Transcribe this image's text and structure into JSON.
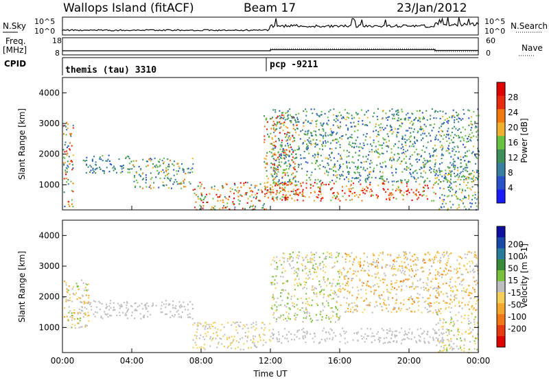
{
  "header": {
    "station": "Wallops Island (fitACF)",
    "beam": "Beam 17",
    "date": "23/Jan/2012"
  },
  "ops": {
    "nsky_label": "N.Sky",
    "nsearch_label": "N.Search",
    "nave_label": "Nave",
    "freq_label_1": "Freq.",
    "freq_label_2": "[MHz]",
    "cpid_label": "CPID",
    "exp_top": "10^5",
    "exp_bottom": "10^0",
    "freq_top": "18",
    "freq_bottom": "8",
    "nave_top": "60",
    "nave_bottom": "0",
    "cpid_1": "themis (tau) 3310",
    "cpid_2": "pcp -9211"
  },
  "colors": {
    "power": [
      "#1a1aff",
      "#2a52c8",
      "#3a7fa0",
      "#3f8f5a",
      "#6ac040",
      "#f0b030",
      "#f07a10",
      "#e82a10",
      "#e00000"
    ],
    "velocity": [
      "#e00000",
      "#e63a10",
      "#f07818",
      "#f4a830",
      "#f4d05a",
      "#bebebe",
      "#7cc040",
      "#3a8a3a",
      "#2a7a9a",
      "#1a4aa8",
      "#1010a0"
    ],
    "ground": "#bebebe"
  },
  "chart_data": [
    {
      "type": "heatmap",
      "title": "Power",
      "ylabel": "Slant Range [km]",
      "xlabel": "",
      "xlim": [
        "00:00",
        "24:00"
      ],
      "ylim": [
        180,
        4500
      ],
      "y_ticks": [
        "1000",
        "2000",
        "3000",
        "4000"
      ],
      "colorbar": {
        "label": "Power [dB]",
        "ticks": [
          "4",
          "8",
          "12",
          "16",
          "20",
          "24",
          "28"
        ],
        "range": [
          0,
          30
        ]
      },
      "echo_bands": [
        {
          "t0": 0.0,
          "t1": 0.6,
          "r0": 300,
          "r1": 3100,
          "value_range": [
            4,
            28
          ]
        },
        {
          "t0": 1.0,
          "t1": 4.0,
          "r0": 1400,
          "r1": 2000,
          "value_range": [
            4,
            14
          ]
        },
        {
          "t0": 4.0,
          "t1": 7.5,
          "r0": 900,
          "r1": 1900,
          "value_range": [
            4,
            22
          ]
        },
        {
          "t0": 7.5,
          "t1": 11.8,
          "r0": 200,
          "r1": 1100,
          "value_range": [
            8,
            30
          ]
        },
        {
          "t0": 11.6,
          "t1": 13.5,
          "r0": 500,
          "r1": 3300,
          "value_range": [
            10,
            28
          ]
        },
        {
          "t0": 12.0,
          "t1": 21.5,
          "r0": 500,
          "r1": 1100,
          "value_range": [
            14,
            30
          ]
        },
        {
          "t0": 12.0,
          "t1": 24.0,
          "r0": 1100,
          "r1": 3500,
          "value_range": [
            4,
            18
          ]
        },
        {
          "t0": 21.5,
          "t1": 24.0,
          "r0": 200,
          "r1": 1500,
          "value_range": [
            4,
            20
          ]
        }
      ]
    },
    {
      "type": "heatmap",
      "title": "Velocity",
      "ylabel": "Slant Range [km]",
      "xlabel": "Time UT",
      "xlim": [
        "00:00",
        "24:00"
      ],
      "ylim": [
        180,
        4500
      ],
      "x_ticks": [
        "00:00",
        "04:00",
        "08:00",
        "12:00",
        "16:00",
        "20:00",
        "00:00"
      ],
      "y_ticks": [
        "1000",
        "2000",
        "3000",
        "4000"
      ],
      "colorbar": {
        "label": "Velocity [m s-1]",
        "ticks": [
          "200",
          "100",
          "50",
          "15",
          "-15",
          "-50",
          "-100",
          "-200"
        ],
        "range": [
          -250,
          250
        ]
      },
      "echo_bands": [
        {
          "t0": 0.0,
          "t1": 1.5,
          "r0": 1000,
          "r1": 2600,
          "value_range": [
            -100,
            50
          ]
        },
        {
          "t0": 1.0,
          "t1": 7.5,
          "r0": 1300,
          "r1": 1900,
          "value_range": [
            -15,
            15
          ]
        },
        {
          "t0": 7.5,
          "t1": 12.0,
          "r0": 300,
          "r1": 1200,
          "value_range": [
            -60,
            15
          ]
        },
        {
          "t0": 12.0,
          "t1": 16.0,
          "r0": 1200,
          "r1": 3500,
          "value_range": [
            -60,
            60
          ]
        },
        {
          "t0": 16.0,
          "t1": 24.0,
          "r0": 1500,
          "r1": 3500,
          "value_range": [
            -120,
            20
          ]
        },
        {
          "t0": 12.0,
          "t1": 22.0,
          "r0": 500,
          "r1": 1000,
          "value_range": [
            -15,
            15
          ]
        },
        {
          "t0": 21.5,
          "t1": 24.0,
          "r0": 200,
          "r1": 1500,
          "value_range": [
            -60,
            40
          ]
        }
      ]
    }
  ],
  "operational_data": {
    "freq_MHz": {
      "t0_12": 10.4,
      "t12_215": 11.0,
      "t215_24": 10.6
    },
    "cpid_switch_time": "12:00"
  }
}
